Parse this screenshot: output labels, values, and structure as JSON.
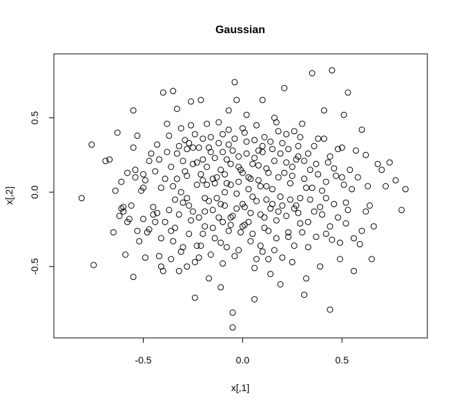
{
  "chart_data": {
    "type": "scatter",
    "title": "Gaussian",
    "xlabel": "x[,1]",
    "ylabel": "x[,2]",
    "xlim": [
      -0.95,
      0.93
    ],
    "ylim": [
      -0.98,
      0.93
    ],
    "xticks": [
      -0.5,
      0.0,
      0.5
    ],
    "xtick_labels": [
      "-0.5",
      "0.0",
      "0.5"
    ],
    "yticks": [
      -0.5,
      0.0,
      0.5
    ],
    "ytick_labels": [
      "-0.5",
      "0.0",
      "0.5"
    ],
    "grid": false,
    "marker": "open-circle",
    "point_color": "#000000",
    "points": [
      [
        -0.81,
        -0.04
      ],
      [
        -0.76,
        0.32
      ],
      [
        -0.75,
        -0.49
      ],
      [
        -0.69,
        0.21
      ],
      [
        -0.67,
        0.22
      ],
      [
        -0.65,
        -0.27
      ],
      [
        -0.64,
        0.01
      ],
      [
        -0.63,
        0.4
      ],
      [
        -0.62,
        -0.16
      ],
      [
        -0.61,
        0.07
      ],
      [
        -0.61,
        -0.11
      ],
      [
        -0.6,
        -0.1
      ],
      [
        -0.6,
        -0.13
      ],
      [
        -0.59,
        -0.42
      ],
      [
        -0.58,
        0.13
      ],
      [
        -0.58,
        -0.2
      ],
      [
        -0.57,
        -0.18
      ],
      [
        -0.56,
        -0.09
      ],
      [
        -0.55,
        0.55
      ],
      [
        -0.55,
        0.3
      ],
      [
        -0.55,
        -0.57
      ],
      [
        -0.54,
        0.15
      ],
      [
        -0.54,
        0.1
      ],
      [
        -0.53,
        0.38
      ],
      [
        -0.53,
        -0.26
      ],
      [
        -0.52,
        -0.33
      ],
      [
        -0.51,
        0.01
      ],
      [
        -0.5,
        0.12
      ],
      [
        -0.5,
        -0.18
      ],
      [
        -0.49,
        0.08
      ],
      [
        -0.49,
        -0.44
      ],
      [
        -0.48,
        -0.27
      ],
      [
        -0.47,
        0.21
      ],
      [
        -0.46,
        0.26
      ],
      [
        -0.45,
        -0.15
      ],
      [
        -0.44,
        -0.2
      ],
      [
        -0.43,
        0.32
      ],
      [
        -0.43,
        -0.14
      ],
      [
        -0.42,
        -0.43
      ],
      [
        -0.41,
        0.03
      ],
      [
        -0.41,
        -0.5
      ],
      [
        -0.4,
        0.67
      ],
      [
        -0.4,
        -0.53
      ],
      [
        -0.39,
        -0.2
      ],
      [
        -0.38,
        0.46
      ],
      [
        -0.37,
        -0.12
      ],
      [
        -0.36,
        -0.26
      ],
      [
        -0.36,
        -0.45
      ],
      [
        -0.35,
        0.68
      ],
      [
        -0.35,
        0.04
      ],
      [
        -0.34,
        -0.24
      ],
      [
        -0.33,
        0.56
      ],
      [
        -0.33,
        0.26
      ],
      [
        -0.32,
        -0.15
      ],
      [
        -0.32,
        -0.53
      ],
      [
        -0.31,
        0.43
      ],
      [
        -0.31,
        0.0
      ],
      [
        -0.3,
        0.21
      ],
      [
        -0.3,
        -0.37
      ],
      [
        -0.29,
        0.35
      ],
      [
        -0.28,
        0.29
      ],
      [
        -0.28,
        0.11
      ],
      [
        -0.28,
        -0.04
      ],
      [
        -0.27,
        -0.28
      ],
      [
        -0.26,
        0.61
      ],
      [
        -0.26,
        0.45
      ],
      [
        -0.25,
        0.3
      ],
      [
        -0.25,
        0.19
      ],
      [
        -0.24,
        -0.47
      ],
      [
        -0.24,
        -0.71
      ],
      [
        -0.23,
        0.05
      ],
      [
        -0.22,
        0.3
      ],
      [
        -0.22,
        -0.17
      ],
      [
        -0.21,
        0.62
      ],
      [
        -0.21,
        -0.36
      ],
      [
        -0.2,
        0.36
      ],
      [
        -0.2,
        0.22
      ],
      [
        -0.19,
        -0.04
      ],
      [
        -0.19,
        -0.23
      ],
      [
        -0.18,
        0.46
      ],
      [
        -0.18,
        0.05
      ],
      [
        -0.17,
        -0.58
      ],
      [
        -0.16,
        0.37
      ],
      [
        -0.16,
        0.27
      ],
      [
        -0.15,
        0.09
      ],
      [
        -0.15,
        -0.12
      ],
      [
        -0.14,
        -0.31
      ],
      [
        -0.13,
        -0.04
      ],
      [
        -0.12,
        0.47
      ],
      [
        -0.11,
        0.15
      ],
      [
        -0.11,
        -0.64
      ],
      [
        -0.1,
        0.27
      ],
      [
        -0.1,
        -0.2
      ],
      [
        -0.09,
        0.0
      ],
      [
        -0.08,
        0.06
      ],
      [
        -0.08,
        -0.37
      ],
      [
        -0.07,
        0.55
      ],
      [
        -0.07,
        0.32
      ],
      [
        -0.06,
        0.19
      ],
      [
        -0.06,
        -0.17
      ],
      [
        -0.05,
        -0.81
      ],
      [
        -0.05,
        -0.91
      ],
      [
        -0.04,
        0.74
      ],
      [
        -0.04,
        -0.43
      ],
      [
        -0.03,
        0.62
      ],
      [
        -0.02,
        0.24
      ],
      [
        -0.02,
        0.07
      ],
      [
        -0.01,
        -0.27
      ],
      [
        0.0,
        0.13
      ],
      [
        0.0,
        -0.08
      ],
      [
        0.01,
        -0.22
      ],
      [
        0.02,
        0.52
      ],
      [
        0.02,
        0.34
      ],
      [
        0.03,
        0.02
      ],
      [
        0.04,
        -0.33
      ],
      [
        0.05,
        0.19
      ],
      [
        0.05,
        -0.03
      ],
      [
        0.06,
        -0.51
      ],
      [
        0.06,
        -0.72
      ],
      [
        0.07,
        0.45
      ],
      [
        0.08,
        0.28
      ],
      [
        0.08,
        0.08
      ],
      [
        0.09,
        -0.15
      ],
      [
        0.1,
        0.62
      ],
      [
        0.1,
        -0.4
      ],
      [
        0.11,
        0.37
      ],
      [
        0.12,
        0.16
      ],
      [
        0.12,
        -0.05
      ],
      [
        0.13,
        -0.26
      ],
      [
        0.14,
        -0.55
      ],
      [
        0.15,
        0.29
      ],
      [
        0.15,
        0.02
      ],
      [
        0.16,
        -0.39
      ],
      [
        0.17,
        0.47
      ],
      [
        0.18,
        0.1
      ],
      [
        0.18,
        -0.13
      ],
      [
        0.19,
        -0.62
      ],
      [
        0.2,
        0.33
      ],
      [
        0.21,
        0.7
      ],
      [
        0.22,
        0.2
      ],
      [
        0.23,
        -0.3
      ],
      [
        0.24,
        0.06
      ],
      [
        0.25,
        -0.47
      ],
      [
        0.26,
        0.41
      ],
      [
        0.27,
        -0.09
      ],
      [
        0.28,
        0.24
      ],
      [
        0.29,
        -0.21
      ],
      [
        0.3,
        0.46
      ],
      [
        0.31,
        -0.69
      ],
      [
        0.32,
        0.03
      ],
      [
        0.33,
        -0.37
      ],
      [
        0.34,
        0.15
      ],
      [
        0.35,
        0.8
      ],
      [
        0.36,
        -0.13
      ],
      [
        0.38,
        0.36
      ],
      [
        0.39,
        -0.5
      ],
      [
        0.4,
        0.01
      ],
      [
        0.41,
        0.55
      ],
      [
        0.42,
        -0.28
      ],
      [
        0.43,
        0.2
      ],
      [
        0.44,
        -0.79
      ],
      [
        0.45,
        0.82
      ],
      [
        0.46,
        -0.08
      ],
      [
        0.48,
        0.29
      ],
      [
        0.49,
        -0.45
      ],
      [
        0.5,
        0.1
      ],
      [
        0.51,
        0.52
      ],
      [
        0.52,
        -0.21
      ],
      [
        0.53,
        0.67
      ],
      [
        0.55,
        0.02
      ],
      [
        0.56,
        -0.53
      ],
      [
        0.57,
        0.28
      ],
      [
        0.59,
        -0.35
      ],
      [
        0.6,
        0.42
      ],
      [
        0.62,
        -0.13
      ],
      [
        0.63,
        0.04
      ],
      [
        0.65,
        -0.45
      ],
      [
        0.66,
        -0.23
      ],
      [
        0.68,
        0.19
      ],
      [
        0.7,
        0.15
      ],
      [
        0.72,
        0.04
      ],
      [
        0.74,
        0.2
      ],
      [
        0.77,
        0.08
      ],
      [
        0.8,
        -0.12
      ],
      [
        0.82,
        0.02
      ],
      [
        -0.45,
        -0.1
      ],
      [
        -0.42,
        0.22
      ],
      [
        -0.39,
        0.09
      ],
      [
        -0.37,
        0.38
      ],
      [
        -0.34,
        -0.05
      ],
      [
        -0.33,
        0.09
      ],
      [
        -0.31,
        -0.4
      ],
      [
        -0.29,
        0.14
      ],
      [
        -0.27,
        -0.09
      ],
      [
        -0.26,
        -0.19
      ],
      [
        -0.24,
        0.39
      ],
      [
        -0.23,
        -0.36
      ],
      [
        -0.21,
        0.12
      ],
      [
        -0.2,
        -0.28
      ],
      [
        -0.18,
        0.17
      ],
      [
        -0.17,
        -0.06
      ],
      [
        -0.16,
        -0.42
      ],
      [
        -0.14,
        0.23
      ],
      [
        -0.13,
        0.1
      ],
      [
        -0.12,
        -0.17
      ],
      [
        -0.11,
        -0.34
      ],
      [
        -0.1,
        0.39
      ],
      [
        -0.09,
        -0.09
      ],
      [
        -0.08,
        0.22
      ],
      [
        -0.07,
        -0.26
      ],
      [
        -0.06,
        0.05
      ],
      [
        -0.05,
        -0.16
      ],
      [
        -0.04,
        0.36
      ],
      [
        -0.03,
        -0.01
      ],
      [
        -0.02,
        -0.39
      ],
      [
        -0.01,
        0.15
      ],
      [
        0.0,
        0.43
      ],
      [
        0.01,
        -0.1
      ],
      [
        0.02,
        0.26
      ],
      [
        0.03,
        -0.2
      ],
      [
        0.04,
        0.09
      ],
      [
        0.05,
        -0.28
      ],
      [
        0.06,
        0.35
      ],
      [
        0.07,
        -0.06
      ],
      [
        0.08,
        0.18
      ],
      [
        0.09,
        -0.36
      ],
      [
        0.1,
        0.27
      ],
      [
        0.11,
        -0.17
      ],
      [
        0.12,
        0.04
      ],
      [
        0.13,
        -0.45
      ],
      [
        0.14,
        0.34
      ],
      [
        0.15,
        -0.08
      ],
      [
        0.16,
        0.21
      ],
      [
        0.17,
        -0.31
      ],
      [
        0.18,
        0.41
      ],
      [
        0.19,
        -0.03
      ],
      [
        0.2,
        -0.44
      ],
      [
        0.21,
        0.13
      ],
      [
        0.22,
        -0.16
      ],
      [
        0.23,
        0.29
      ],
      [
        0.24,
        -0.05
      ],
      [
        0.25,
        0.11
      ],
      [
        0.26,
        -0.36
      ],
      [
        0.27,
        0.22
      ],
      [
        0.28,
        -0.14
      ],
      [
        0.29,
        0.37
      ],
      [
        0.3,
        -0.27
      ],
      [
        0.31,
        0.09
      ],
      [
        0.32,
        -0.58
      ],
      [
        0.33,
        0.26
      ],
      [
        0.34,
        -0.05
      ],
      [
        0.36,
        0.31
      ],
      [
        0.37,
        -0.3
      ],
      [
        0.38,
        0.12
      ],
      [
        0.4,
        -0.15
      ],
      [
        0.41,
        0.36
      ],
      [
        0.42,
        -0.04
      ],
      [
        0.44,
        0.24
      ],
      [
        0.45,
        -0.32
      ],
      [
        0.47,
        0.11
      ],
      [
        0.48,
        -0.17
      ],
      [
        0.5,
        0.3
      ],
      [
        0.52,
        -0.07
      ],
      [
        0.54,
        0.15
      ],
      [
        0.56,
        -0.31
      ],
      [
        0.58,
        0.1
      ],
      [
        0.6,
        -0.26
      ],
      [
        0.62,
        0.25
      ],
      [
        0.64,
        -0.09
      ],
      [
        -0.5,
        0.03
      ],
      [
        -0.47,
        -0.25
      ],
      [
        -0.44,
        0.14
      ],
      [
        -0.41,
        -0.31
      ],
      [
        -0.38,
        0.27
      ],
      [
        -0.36,
        0.17
      ],
      [
        -0.35,
        -0.33
      ],
      [
        -0.32,
        0.31
      ],
      [
        -0.3,
        -0.07
      ],
      [
        -0.28,
        -0.5
      ],
      [
        -0.27,
        0.33
      ],
      [
        -0.25,
        -0.13
      ],
      [
        -0.23,
        0.2
      ],
      [
        -0.22,
        -0.44
      ],
      [
        -0.2,
        0.08
      ],
      [
        -0.19,
        -0.13
      ],
      [
        -0.17,
        0.3
      ],
      [
        -0.15,
        -0.24
      ],
      [
        -0.14,
        0.06
      ],
      [
        -0.12,
        0.33
      ],
      [
        -0.11,
        -0.08
      ],
      [
        -0.1,
        -0.48
      ],
      [
        -0.09,
        0.12
      ],
      [
        -0.07,
        0.42
      ],
      [
        -0.06,
        -0.22
      ],
      [
        -0.05,
        0.28
      ],
      [
        -0.03,
        -0.11
      ],
      [
        -0.02,
        0.17
      ],
      [
        0.0,
        -0.23
      ],
      [
        0.01,
        0.4
      ],
      [
        0.03,
        0.1
      ],
      [
        0.04,
        -0.14
      ],
      [
        0.06,
        0.23
      ],
      [
        0.07,
        -0.45
      ],
      [
        0.09,
        0.04
      ],
      [
        0.1,
        0.31
      ],
      [
        0.11,
        -0.24
      ],
      [
        0.13,
        0.13
      ],
      [
        0.14,
        -0.11
      ],
      [
        0.16,
        0.5
      ],
      [
        0.17,
        -0.19
      ],
      [
        0.19,
        0.26
      ],
      [
        0.2,
        -0.09
      ],
      [
        0.22,
        0.39
      ],
      [
        0.23,
        -0.27
      ],
      [
        0.25,
        0.17
      ],
      [
        0.26,
        -0.11
      ],
      [
        0.28,
        0.31
      ],
      [
        0.29,
        -0.04
      ],
      [
        0.31,
        0.21
      ],
      [
        0.33,
        -0.2
      ],
      [
        0.35,
        0.03
      ],
      [
        0.37,
        0.19
      ],
      [
        0.39,
        -0.1
      ],
      [
        0.42,
        0.07
      ],
      [
        0.44,
        -0.23
      ],
      [
        0.46,
        0.16
      ],
      [
        0.49,
        -0.34
      ],
      [
        0.51,
        0.05
      ],
      [
        0.53,
        -0.12
      ]
    ]
  }
}
